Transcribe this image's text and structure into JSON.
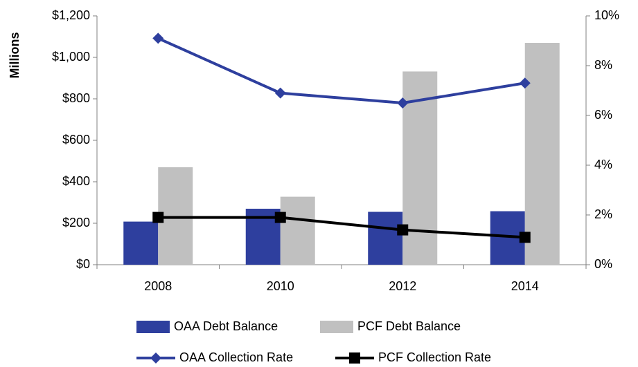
{
  "chart_data": {
    "type": "bar",
    "y_axis_label": "Millions",
    "categories": [
      "2008",
      "2010",
      "2012",
      "2014"
    ],
    "series": [
      {
        "name": "OAA Debt Balance",
        "type": "bar",
        "color": "#2e3f9e",
        "values": [
          208,
          270,
          255,
          258
        ]
      },
      {
        "name": "PCF Debt Balance",
        "type": "bar",
        "color": "#c0c0c0",
        "values": [
          470,
          328,
          932,
          1070
        ]
      },
      {
        "name": "OAA Collection Rate",
        "type": "line",
        "axis": "y2",
        "color": "#2e3f9e",
        "marker": "diamond",
        "values": [
          9.1,
          6.9,
          6.5,
          7.3
        ]
      },
      {
        "name": "PCF Collection Rate",
        "type": "line",
        "axis": "y2",
        "color": "#000000",
        "marker": "square",
        "values": [
          1.9,
          1.9,
          1.4,
          1.1
        ]
      }
    ],
    "ylim": [
      0,
      1200
    ],
    "yticks": [
      {
        "value": 0,
        "label": "$0"
      },
      {
        "value": 200,
        "label": "$200"
      },
      {
        "value": 400,
        "label": "$400"
      },
      {
        "value": 600,
        "label": "$600"
      },
      {
        "value": 800,
        "label": "$800"
      },
      {
        "value": 1000,
        "label": "$1,000"
      },
      {
        "value": 1200,
        "label": "$1,200"
      }
    ],
    "y2lim": [
      0,
      10
    ],
    "y2ticks": [
      {
        "value": 0,
        "label": "0%"
      },
      {
        "value": 2,
        "label": "2%"
      },
      {
        "value": 4,
        "label": "4%"
      },
      {
        "value": 6,
        "label": "6%"
      },
      {
        "value": 8,
        "label": "8%"
      },
      {
        "value": 10,
        "label": "10%"
      }
    ],
    "grid": false,
    "legend": "bottom"
  }
}
